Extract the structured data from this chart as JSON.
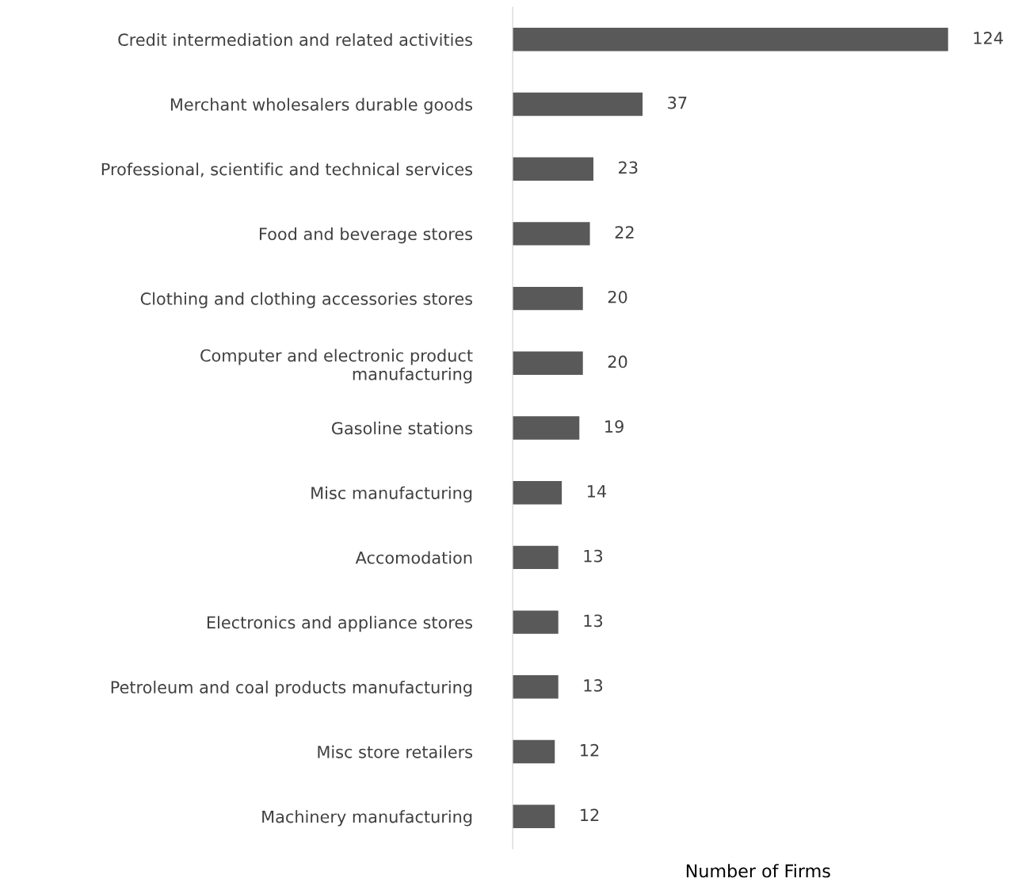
{
  "chart_data": {
    "type": "bar",
    "orientation": "horizontal",
    "xlabel": "Number of Firms",
    "categories": [
      "Credit intermediation and related activities",
      "Merchant wholesalers durable goods",
      "Professional, scientific and technical services",
      "Food and beverage stores",
      "Clothing and clothing accessories stores",
      "Computer and electronic product\nmanufacturing",
      "Gasoline stations",
      "Misc manufacturing",
      "Accomodation",
      "Electronics and appliance stores",
      "Petroleum and coal products manufacturing",
      "Misc store retailers",
      "Machinery manufacturing"
    ],
    "values": [
      124,
      37,
      23,
      22,
      20,
      20,
      19,
      14,
      13,
      13,
      13,
      12,
      12
    ],
    "color": "#595959",
    "relative": false,
    "data_labels": true,
    "tick_labels": "y",
    "grid": false,
    "legend": false
  }
}
